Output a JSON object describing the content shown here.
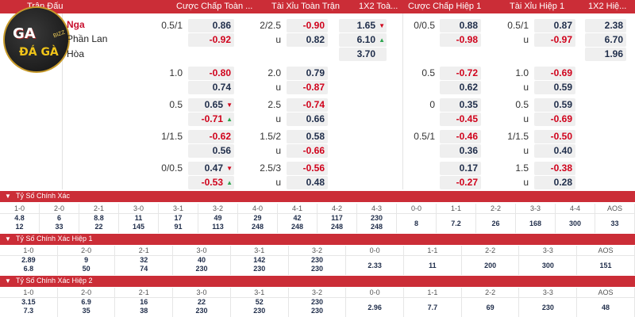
{
  "header": [
    "Trận Đấu",
    "Cược Chấp Toàn ...",
    "Tài Xỉu Toàn Trận",
    "1X2 Toà...",
    "Cược Chấp Hiệp 1",
    "Tài Xỉu Hiệp 1",
    "1X2 Hiệ..."
  ],
  "logo": {
    "line1": "GA",
    "line2": "ĐÁ GÀ",
    "badge": "BIZZ"
  },
  "teams": {
    "home": "Nga",
    "away": "Phần Lan",
    "draw": "Hòa"
  },
  "odds_main": {
    "r1": {
      "ft_hdp": "0.5/1",
      "ft_h1": "0.86",
      "ft_h2": "-0.92",
      "ft_ou": "2/2.5",
      "ft_o1": "-0.90",
      "ft_o2": "0.82",
      "ft_u": "u",
      "x1": "1.65",
      "x2": "6.10",
      "x3": "3.70",
      "h1_hdp": "0/0.5",
      "h1_h1": "0.88",
      "h1_h2": "-0.98",
      "h1_ou": "0.5/1",
      "h1_o1": "0.87",
      "h1_o2": "-0.97",
      "h1_u": "u",
      "hx1": "2.38",
      "hx2": "6.70",
      "hx3": "1.96"
    },
    "rows": [
      {
        "hdp": "1.0",
        "a": "-0.80",
        "b": "0.74",
        "ou": "2.0",
        "c": "0.79",
        "d": "-0.87",
        "u": "u",
        "hhdp": "0.5",
        "e": "-0.72",
        "f": "0.62",
        "hou": "1.0",
        "g": "-0.69",
        "h": "0.59",
        "hu": "u"
      },
      {
        "hdp": "0.5",
        "a": "0.65",
        "b": "-0.71",
        "ou": "2.5",
        "c": "-0.74",
        "d": "0.66",
        "u": "u",
        "hhdp": "0",
        "e": "0.35",
        "f": "-0.45",
        "hou": "0.5",
        "g": "0.59",
        "h": "-0.69",
        "hu": "u"
      },
      {
        "hdp": "1/1.5",
        "a": "-0.62",
        "b": "0.56",
        "ou": "1.5/2",
        "c": "0.58",
        "d": "-0.66",
        "u": "u",
        "hhdp": "0.5/1",
        "e": "-0.46",
        "f": "0.36",
        "hou": "1/1.5",
        "g": "-0.50",
        "h": "0.40",
        "hu": "u"
      },
      {
        "hdp": "0/0.5",
        "a": "0.47",
        "b": "-0.53",
        "ou": "2.5/3",
        "c": "-0.56",
        "d": "0.48",
        "u": "u",
        "hhdp": "",
        "e": "0.17",
        "f": "-0.27",
        "hou": "1.5",
        "g": "-0.38",
        "h": "0.28",
        "hu": "u"
      }
    ]
  },
  "correct_score": {
    "title": "Tỷ Số Chính Xác",
    "headers": [
      "1-0",
      "2-0",
      "2-1",
      "3-0",
      "3-1",
      "3-2",
      "4-0",
      "4-1",
      "4-2",
      "4-3",
      "0-0",
      "1-1",
      "2-2",
      "3-3",
      "4-4",
      "AOS"
    ],
    "top": [
      "4.8",
      "6",
      "8.8",
      "11",
      "17",
      "49",
      "29",
      "42",
      "117",
      "230",
      "",
      "",
      "",
      "",
      "",
      ""
    ],
    "bottom": [
      "12",
      "33",
      "22",
      "145",
      "91",
      "113",
      "248",
      "248",
      "248",
      "248",
      "8",
      "7.2",
      "26",
      "168",
      "300",
      "33"
    ]
  },
  "correct_score_h1": {
    "title": "Tỷ Số Chính Xác Hiệp 1",
    "headers": [
      "1-0",
      "2-0",
      "2-1",
      "3-0",
      "3-1",
      "3-2",
      "0-0",
      "1-1",
      "2-2",
      "3-3",
      "AOS"
    ],
    "top": [
      "2.89",
      "9",
      "32",
      "40",
      "142",
      "230",
      "",
      "",
      "",
      "",
      ""
    ],
    "bottom": [
      "6.8",
      "50",
      "74",
      "230",
      "230",
      "230",
      "2.33",
      "11",
      "200",
      "300",
      "151"
    ]
  },
  "correct_score_h2": {
    "title": "Tỷ Số Chính Xác Hiệp 2",
    "headers": [
      "1-0",
      "2-0",
      "2-1",
      "3-0",
      "3-1",
      "3-2",
      "0-0",
      "1-1",
      "2-2",
      "3-3",
      "AOS"
    ],
    "top": [
      "3.15",
      "6.9",
      "16",
      "22",
      "52",
      "230",
      "",
      "",
      "",
      "",
      ""
    ],
    "bottom": [
      "7.3",
      "35",
      "38",
      "230",
      "230",
      "230",
      "2.96",
      "7.7",
      "69",
      "230",
      "48"
    ]
  }
}
